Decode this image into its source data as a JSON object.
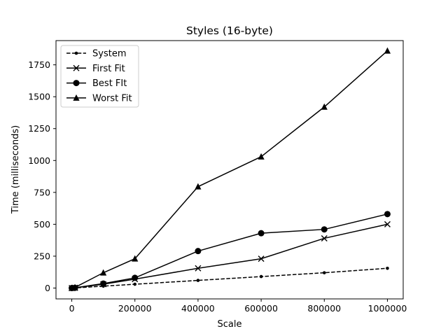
{
  "chart_data": {
    "type": "line",
    "title": "Styles (16-byte)",
    "xlabel": "Scale",
    "ylabel": "Time (milliseconds)",
    "xlim": [
      -50000,
      1050000
    ],
    "ylim": [
      -85,
      1940
    ],
    "xticks": [
      0,
      200000,
      400000,
      600000,
      800000,
      1000000
    ],
    "xtick_labels": [
      "0",
      "200000",
      "400000",
      "600000",
      "800000",
      "1000000"
    ],
    "yticks": [
      0,
      250,
      500,
      750,
      1000,
      1250,
      1500,
      1750
    ],
    "ytick_labels": [
      "0",
      "250",
      "500",
      "750",
      "1000",
      "1250",
      "1500",
      "1750"
    ],
    "grid": false,
    "legend_position": "upper-left",
    "x": [
      0,
      10000,
      100000,
      200000,
      400000,
      600000,
      800000,
      1000000
    ],
    "series": [
      {
        "name": "System",
        "style": "dashed",
        "marker": "small-dot",
        "color": "#000000",
        "values": [
          0,
          1,
          15,
          30,
          60,
          90,
          120,
          155
        ]
      },
      {
        "name": "First Fit",
        "style": "solid",
        "marker": "x",
        "color": "#000000",
        "values": [
          0,
          2,
          30,
          70,
          155,
          230,
          390,
          500
        ]
      },
      {
        "name": "Best FIt",
        "style": "solid",
        "marker": "circle",
        "color": "#000000",
        "values": [
          0,
          2,
          35,
          80,
          290,
          430,
          460,
          580
        ]
      },
      {
        "name": "Worst Fit",
        "style": "solid",
        "marker": "triangle",
        "color": "#000000",
        "values": [
          0,
          5,
          120,
          230,
          795,
          1030,
          1420,
          1860
        ]
      }
    ]
  }
}
